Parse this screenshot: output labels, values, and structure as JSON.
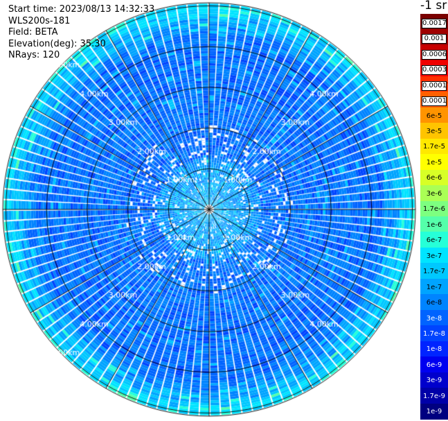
{
  "info": {
    "start_time": "Start time: 2023/08/13 14:32:33",
    "site": "WLS200s-181",
    "field": "Field: BETA",
    "elevation": "Elevation(deg): 35.30",
    "nrays": "NRays: 120"
  },
  "colorbar": {
    "unit": "-1 sr",
    "labels": [
      "0.0017",
      "0.001",
      "0.0006",
      "0.0003",
      "0.00017",
      "0.0001",
      "6e-5",
      "3e-5",
      "1.7e-5",
      "1e-5",
      "6e-6",
      "3e-6",
      "1.7e-6",
      "1e-6",
      "6e-7",
      "3e-7",
      "1.7e-7",
      "1e-7",
      "6e-8",
      "3e-8",
      "1.7e-8",
      "1e-8",
      "6e-9",
      "3e-9",
      "1.7e-9",
      "1e-9"
    ],
    "colors": [
      "#7a0000",
      "#a00000",
      "#c80000",
      "#f00000",
      "#ff3000",
      "#ff6000",
      "#ff9400",
      "#ffc400",
      "#ffe800",
      "#ffff00",
      "#d8ff26",
      "#aaff55",
      "#7dff80",
      "#55ffaa",
      "#26ffd8",
      "#00e4ff",
      "#00c8ff",
      "#00a4ff",
      "#0084ff",
      "#0064ff",
      "#0044ff",
      "#0024ff",
      "#0000f0",
      "#0000cc",
      "#0000a8",
      "#000080"
    ]
  },
  "chart_data": {
    "type": "heatmap",
    "projection": "polar-ppi",
    "field": "BETA",
    "nrays": 120,
    "elevation_deg": 35.3,
    "range_rings_km": [
      1,
      2,
      3,
      4,
      5
    ],
    "ring_labels": [
      "1.00km",
      "2.00km",
      "3.00km",
      "4.00km",
      "5.00km"
    ],
    "max_range_km": 5.0,
    "spoke_step_deg": 30,
    "typical_value_range": [
      "1e-8",
      "1e-6"
    ],
    "scale": "log"
  }
}
